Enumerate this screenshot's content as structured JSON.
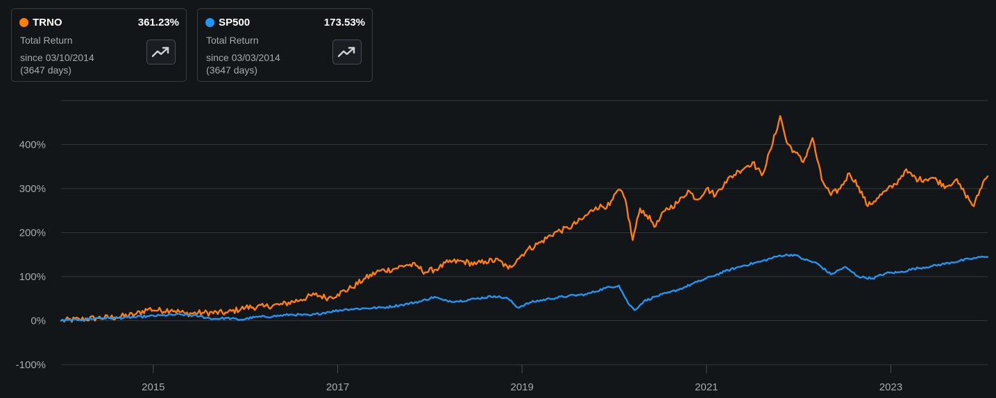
{
  "cards": [
    {
      "ticker": "TRNO",
      "value": "361.23%",
      "label": "Total Return",
      "since": "since 03/10/2014",
      "days": "(3647 days)",
      "color": "#ff7f0e",
      "icon": "trending-up-icon"
    },
    {
      "ticker": "SP500",
      "value": "173.53%",
      "label": "Total Return",
      "since": "since 03/03/2014",
      "days": "(3647 days)",
      "color": "#2196f3",
      "icon": "trending-up-icon"
    }
  ],
  "chart_data": {
    "type": "line",
    "xlim": [
      2014.0,
      2024.05
    ],
    "ylim": [
      -100,
      500
    ],
    "y_ticks": [
      {
        "value": 400,
        "label": "400%"
      },
      {
        "value": 300,
        "label": "300%"
      },
      {
        "value": 200,
        "label": "200%"
      },
      {
        "value": 100,
        "label": "100%"
      },
      {
        "value": 0,
        "label": "0%"
      },
      {
        "value": -100,
        "label": "-100%"
      }
    ],
    "x_ticks": [
      {
        "value": 2015,
        "label": "2015"
      },
      {
        "value": 2017,
        "label": "2017"
      },
      {
        "value": 2019,
        "label": "2019"
      },
      {
        "value": 2021,
        "label": "2021"
      },
      {
        "value": 2023,
        "label": "2023"
      }
    ],
    "grid": true,
    "legend": "top-left cards",
    "series": [
      {
        "name": "TRNO",
        "color": "#ff7f0e",
        "points": [
          [
            2014.0,
            0
          ],
          [
            2014.2,
            3
          ],
          [
            2014.4,
            6
          ],
          [
            2014.6,
            8
          ],
          [
            2014.8,
            14
          ],
          [
            2014.95,
            27
          ],
          [
            2015.05,
            23
          ],
          [
            2015.2,
            25
          ],
          [
            2015.35,
            16
          ],
          [
            2015.55,
            18
          ],
          [
            2015.8,
            18
          ],
          [
            2016.0,
            30
          ],
          [
            2016.2,
            32
          ],
          [
            2016.4,
            37
          ],
          [
            2016.6,
            48
          ],
          [
            2016.75,
            59
          ],
          [
            2016.9,
            52
          ],
          [
            2017.0,
            60
          ],
          [
            2017.15,
            75
          ],
          [
            2017.3,
            96
          ],
          [
            2017.45,
            113
          ],
          [
            2017.6,
            117
          ],
          [
            2017.75,
            127
          ],
          [
            2017.85,
            125
          ],
          [
            2017.95,
            110
          ],
          [
            2018.1,
            120
          ],
          [
            2018.2,
            133
          ],
          [
            2018.35,
            135
          ],
          [
            2018.5,
            128
          ],
          [
            2018.6,
            135
          ],
          [
            2018.75,
            137
          ],
          [
            2018.85,
            118
          ],
          [
            2018.95,
            140
          ],
          [
            2019.05,
            160
          ],
          [
            2019.2,
            178
          ],
          [
            2019.35,
            200
          ],
          [
            2019.5,
            210
          ],
          [
            2019.65,
            230
          ],
          [
            2019.8,
            258
          ],
          [
            2019.95,
            262
          ],
          [
            2020.05,
            298
          ],
          [
            2020.12,
            275
          ],
          [
            2020.2,
            183
          ],
          [
            2020.28,
            255
          ],
          [
            2020.35,
            240
          ],
          [
            2020.45,
            215
          ],
          [
            2020.55,
            250
          ],
          [
            2020.7,
            270
          ],
          [
            2020.8,
            296
          ],
          [
            2020.9,
            275
          ],
          [
            2021.0,
            300
          ],
          [
            2021.1,
            285
          ],
          [
            2021.2,
            315
          ],
          [
            2021.35,
            340
          ],
          [
            2021.5,
            360
          ],
          [
            2021.6,
            330
          ],
          [
            2021.7,
            390
          ],
          [
            2021.8,
            465
          ],
          [
            2021.87,
            405
          ],
          [
            2021.95,
            385
          ],
          [
            2022.05,
            360
          ],
          [
            2022.15,
            415
          ],
          [
            2022.25,
            320
          ],
          [
            2022.35,
            285
          ],
          [
            2022.45,
            300
          ],
          [
            2022.55,
            335
          ],
          [
            2022.65,
            305
          ],
          [
            2022.75,
            260
          ],
          [
            2022.85,
            278
          ],
          [
            2022.95,
            295
          ],
          [
            2023.05,
            310
          ],
          [
            2023.15,
            340
          ],
          [
            2023.3,
            320
          ],
          [
            2023.45,
            325
          ],
          [
            2023.6,
            305
          ],
          [
            2023.7,
            320
          ],
          [
            2023.8,
            290
          ],
          [
            2023.9,
            260
          ],
          [
            2024.0,
            315
          ],
          [
            2024.1,
            340
          ],
          [
            2024.2,
            350
          ],
          [
            2024.3,
            330
          ],
          [
            2024.4,
            345
          ],
          [
            2024.5,
            361.23
          ]
        ]
      },
      {
        "name": "SP500",
        "color": "#2196f3",
        "points": [
          [
            2014.0,
            0
          ],
          [
            2014.2,
            2
          ],
          [
            2014.4,
            6
          ],
          [
            2014.6,
            6
          ],
          [
            2014.8,
            8
          ],
          [
            2014.95,
            10
          ],
          [
            2015.1,
            12
          ],
          [
            2015.3,
            14
          ],
          [
            2015.5,
            10
          ],
          [
            2015.65,
            4
          ],
          [
            2015.8,
            6
          ],
          [
            2015.95,
            2
          ],
          [
            2016.1,
            8
          ],
          [
            2016.3,
            10
          ],
          [
            2016.5,
            14
          ],
          [
            2016.7,
            12
          ],
          [
            2016.9,
            20
          ],
          [
            2017.1,
            26
          ],
          [
            2017.3,
            28
          ],
          [
            2017.5,
            30
          ],
          [
            2017.7,
            36
          ],
          [
            2017.9,
            44
          ],
          [
            2018.05,
            54
          ],
          [
            2018.15,
            46
          ],
          [
            2018.3,
            44
          ],
          [
            2018.5,
            50
          ],
          [
            2018.7,
            56
          ],
          [
            2018.85,
            50
          ],
          [
            2018.95,
            30
          ],
          [
            2019.1,
            42
          ],
          [
            2019.3,
            50
          ],
          [
            2019.5,
            56
          ],
          [
            2019.7,
            60
          ],
          [
            2019.9,
            74
          ],
          [
            2020.05,
            80
          ],
          [
            2020.15,
            40
          ],
          [
            2020.22,
            24
          ],
          [
            2020.32,
            44
          ],
          [
            2020.45,
            55
          ],
          [
            2020.6,
            64
          ],
          [
            2020.75,
            75
          ],
          [
            2020.9,
            88
          ],
          [
            2021.05,
            100
          ],
          [
            2021.2,
            112
          ],
          [
            2021.4,
            125
          ],
          [
            2021.6,
            135
          ],
          [
            2021.8,
            148
          ],
          [
            2021.95,
            150
          ],
          [
            2022.05,
            140
          ],
          [
            2022.2,
            130
          ],
          [
            2022.35,
            105
          ],
          [
            2022.5,
            122
          ],
          [
            2022.65,
            100
          ],
          [
            2022.8,
            96
          ],
          [
            2022.95,
            108
          ],
          [
            2023.1,
            110
          ],
          [
            2023.25,
            118
          ],
          [
            2023.45,
            124
          ],
          [
            2023.65,
            132
          ],
          [
            2023.85,
            140
          ],
          [
            2024.0,
            145
          ],
          [
            2024.15,
            150
          ],
          [
            2024.3,
            162
          ],
          [
            2024.5,
            173.53
          ]
        ]
      }
    ]
  }
}
